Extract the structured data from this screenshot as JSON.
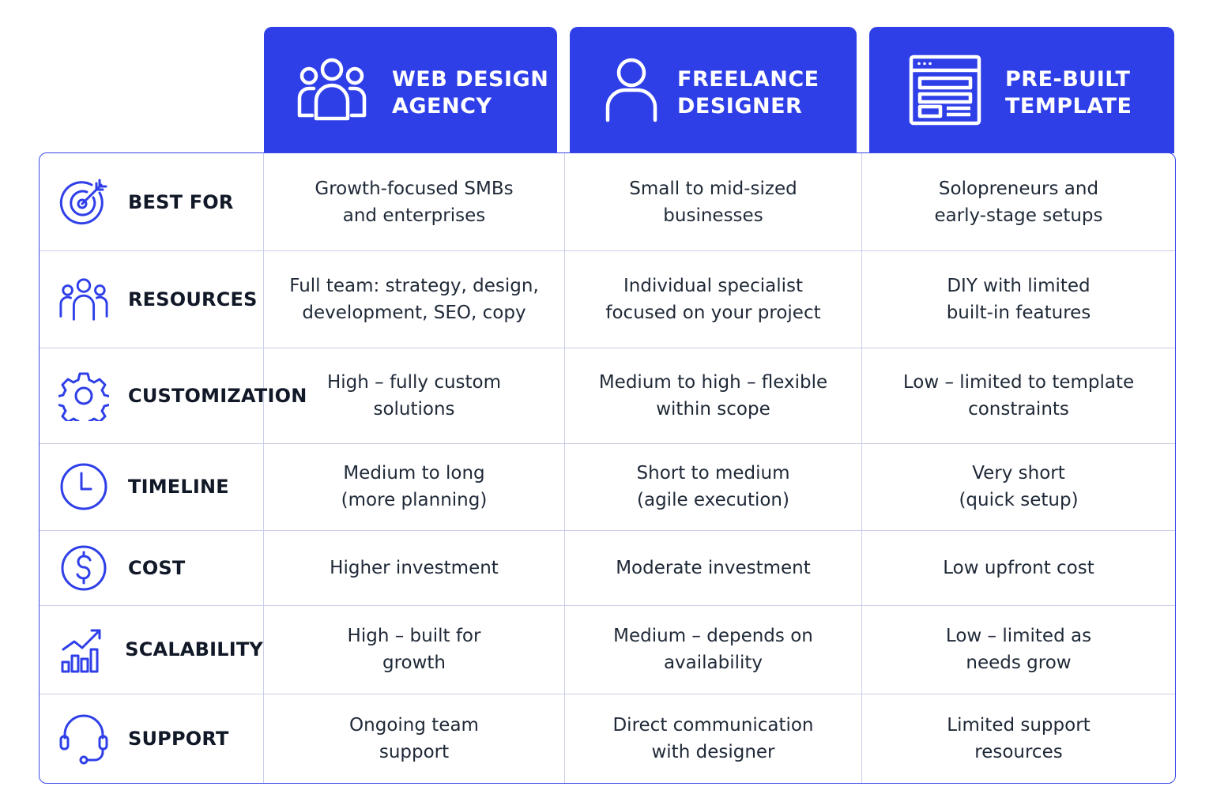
{
  "columns": [
    {
      "title": "WEB DESIGN\nAGENCY",
      "icon": "team-icon"
    },
    {
      "title": "FREELANCE\nDESIGNER",
      "icon": "user-icon"
    },
    {
      "title": "PRE-BUILT\nTEMPLATE",
      "icon": "template-icon"
    }
  ],
  "rows": [
    {
      "label": "BEST FOR",
      "icon": "target-icon",
      "cells": [
        "Growth-focused SMBs\nand enterprises",
        "Small to mid-sized\nbusinesses",
        "Solopreneurs and\nearly-stage setups"
      ]
    },
    {
      "label": "RESOURCES",
      "icon": "people-icon",
      "cells": [
        "Full team: strategy, design,\ndevelopment, SEO, copy",
        "Individual specialist\nfocused on your project",
        "DIY with limited\nbuilt-in features"
      ]
    },
    {
      "label": "CUSTOMIZATION",
      "icon": "gear-icon",
      "cells": [
        "High – fully custom\nsolutions",
        "Medium to high – flexible\nwithin scope",
        "Low – limited to template\nconstraints"
      ]
    },
    {
      "label": "TIMELINE",
      "icon": "clock-icon",
      "cells": [
        "Medium to long\n(more planning)",
        "Short to medium\n(agile execution)",
        "Very short\n(quick setup)"
      ]
    },
    {
      "label": "COST",
      "icon": "dollar-icon",
      "cells": [
        "Higher investment",
        "Moderate investment",
        "Low upfront cost"
      ]
    },
    {
      "label": "SCALABILITY",
      "icon": "growth-chart-icon",
      "cells": [
        "High – built for\ngrowth",
        "Medium – depends on\navailability",
        "Low – limited as\nneeds grow"
      ]
    },
    {
      "label": "SUPPORT",
      "icon": "headset-icon",
      "cells": [
        "Ongoing team\nsupport",
        "Direct communication\nwith designer",
        "Limited support\nresources"
      ]
    }
  ],
  "colors": {
    "accent": "#2f3fe8",
    "grid": "#c9cde8",
    "text": "#1f2937"
  }
}
